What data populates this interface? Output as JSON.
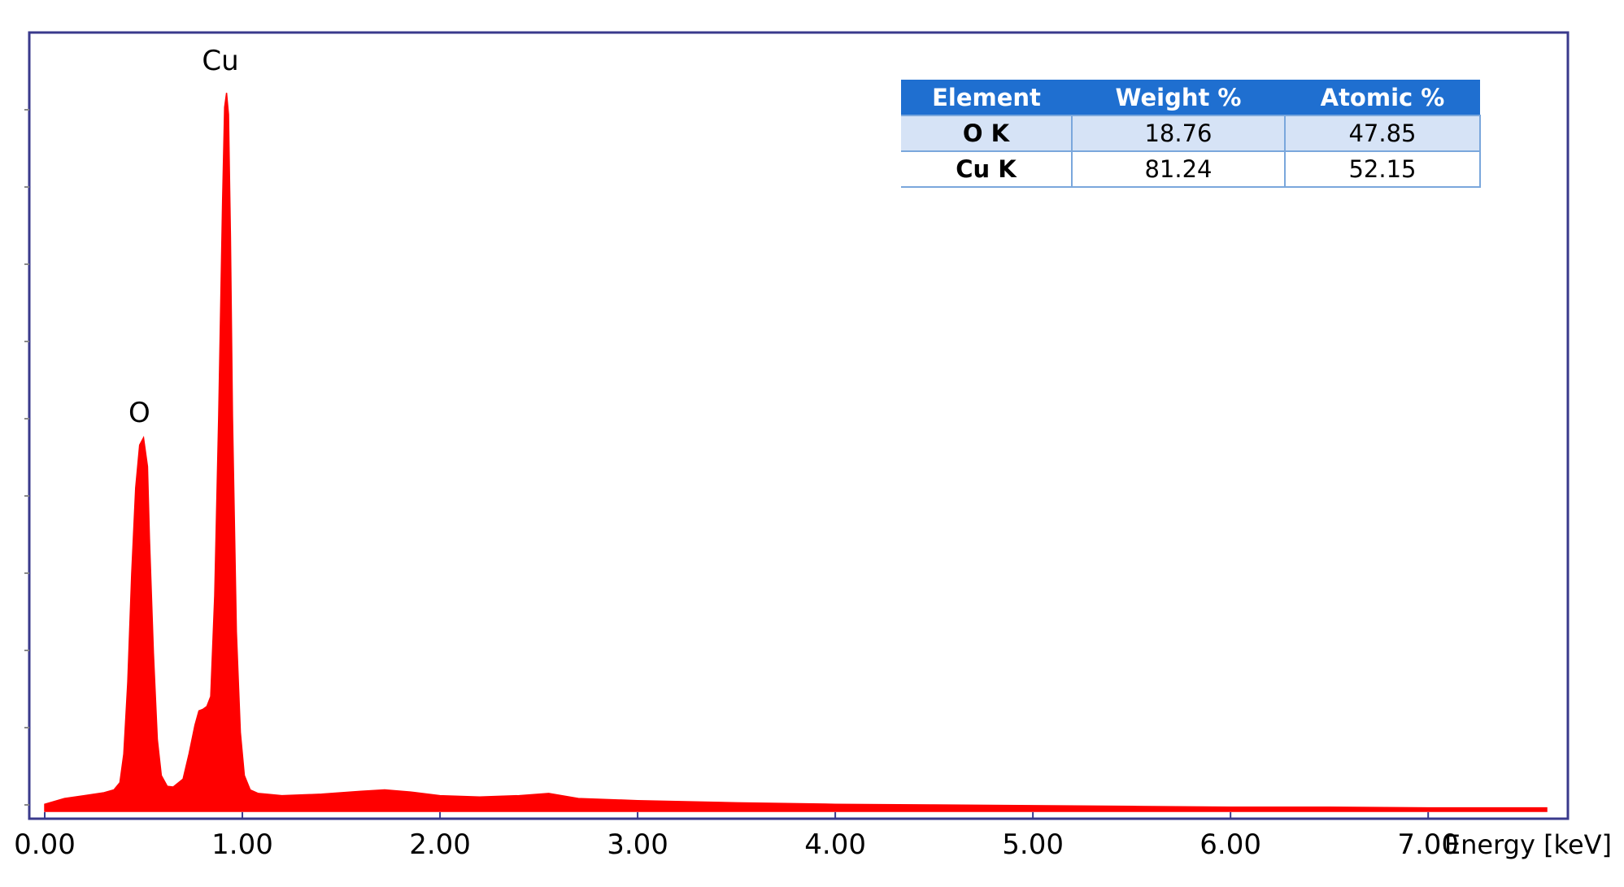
{
  "chart_data": {
    "type": "area",
    "xlabel": "Energy [keV]",
    "ylabel": "",
    "xlim": [
      -0.08,
      7.6
    ],
    "ylim": [
      0,
      1.05
    ],
    "grid": false,
    "series_color": "#ff0000",
    "frame_color": "#3a3a8c",
    "tick_labels": [
      "0.00",
      "1.00",
      "2.00",
      "3.00",
      "4.00",
      "5.00",
      "6.00",
      "7.00"
    ],
    "tick_values": [
      0,
      1,
      2,
      3,
      4,
      5,
      6,
      7
    ],
    "y_minor_ticks": 10,
    "peaks": [
      {
        "label": "O",
        "x": 0.52,
        "y": 0.49
      },
      {
        "label": "Cu",
        "x": 0.93,
        "y": 0.98
      }
    ],
    "x": [
      0.0,
      0.1,
      0.2,
      0.3,
      0.35,
      0.38,
      0.4,
      0.42,
      0.44,
      0.46,
      0.48,
      0.5,
      0.52,
      0.53,
      0.55,
      0.57,
      0.59,
      0.62,
      0.65,
      0.7,
      0.73,
      0.76,
      0.78,
      0.8,
      0.82,
      0.84,
      0.86,
      0.88,
      0.9,
      0.91,
      0.92,
      0.93,
      0.94,
      0.95,
      0.97,
      0.99,
      1.01,
      1.04,
      1.08,
      1.12,
      1.2,
      1.4,
      1.6,
      1.72,
      1.85,
      2.0,
      2.2,
      2.4,
      2.55,
      2.7,
      3.0,
      3.5,
      4.0,
      4.5,
      5.0,
      5.5,
      6.0,
      6.5,
      7.0,
      7.5,
      7.6
    ],
    "y": [
      0.01,
      0.018,
      0.022,
      0.026,
      0.03,
      0.04,
      0.08,
      0.18,
      0.33,
      0.45,
      0.51,
      0.52,
      0.48,
      0.38,
      0.22,
      0.1,
      0.05,
      0.035,
      0.034,
      0.045,
      0.08,
      0.12,
      0.14,
      0.142,
      0.146,
      0.16,
      0.3,
      0.55,
      0.85,
      0.98,
      1.0,
      0.97,
      0.8,
      0.55,
      0.25,
      0.11,
      0.05,
      0.03,
      0.025,
      0.024,
      0.022,
      0.024,
      0.028,
      0.03,
      0.027,
      0.022,
      0.02,
      0.022,
      0.025,
      0.018,
      0.015,
      0.012,
      0.01,
      0.009,
      0.008,
      0.007,
      0.006,
      0.006,
      0.005,
      0.005,
      0.005
    ]
  },
  "table": {
    "headers": [
      "Element",
      "Weight %",
      "Atomic %"
    ],
    "rows": [
      {
        "element": "O K",
        "weight": "18.76",
        "atomic": "47.85"
      },
      {
        "element": "Cu K",
        "weight": "81.24",
        "atomic": "52.15"
      }
    ]
  }
}
